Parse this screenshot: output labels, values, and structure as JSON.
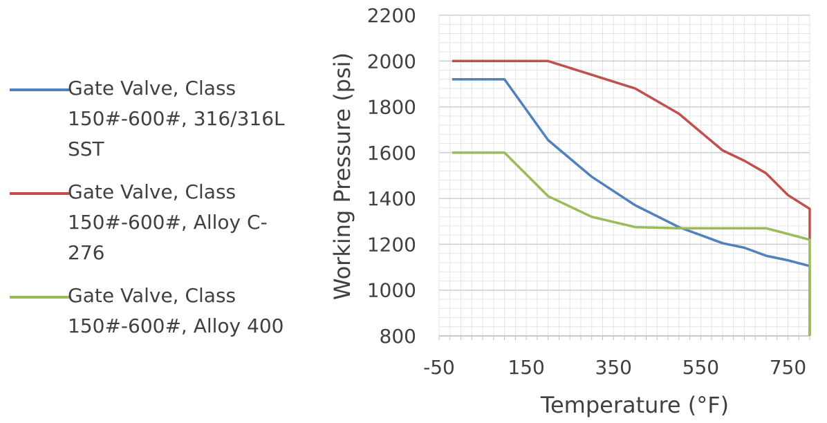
{
  "chart_data": {
    "type": "line",
    "title": "",
    "xlabel": "Temperature (°F)",
    "ylabel": "Working Pressure  (psi)",
    "xlim": [
      -50,
      800
    ],
    "ylim": [
      800,
      2200
    ],
    "xticks": [
      -50,
      150,
      350,
      550,
      750
    ],
    "yticks": [
      800,
      1000,
      1200,
      1400,
      1600,
      1800,
      2000,
      2200
    ],
    "x_tick_labels": [
      "-50",
      "150",
      "350",
      "550",
      "750"
    ],
    "y_tick_labels": [
      "800",
      "1000",
      "1200",
      "1400",
      "1600",
      "1800",
      "2000",
      "2200"
    ],
    "grid": true,
    "legend_position": "left",
    "series": [
      {
        "name": "Gate Valve, Class 150#-600#, 316/316L SST",
        "color": "#4f81bd",
        "points": [
          [
            -20,
            1920
          ],
          [
            100,
            1920
          ],
          [
            200,
            1655
          ],
          [
            300,
            1495
          ],
          [
            400,
            1370
          ],
          [
            500,
            1275
          ],
          [
            600,
            1205
          ],
          [
            650,
            1185
          ],
          [
            700,
            1150
          ],
          [
            750,
            1130
          ],
          [
            800,
            1105
          ],
          [
            800,
            800
          ]
        ]
      },
      {
        "name": "Gate Valve, Class 150#-600#, Alloy C-276",
        "color": "#c0504d",
        "points": [
          [
            -20,
            2000
          ],
          [
            100,
            2000
          ],
          [
            200,
            2000
          ],
          [
            300,
            1940
          ],
          [
            400,
            1880
          ],
          [
            500,
            1770
          ],
          [
            600,
            1610
          ],
          [
            650,
            1565
          ],
          [
            700,
            1510
          ],
          [
            750,
            1415
          ],
          [
            800,
            1355
          ],
          [
            800,
            1220
          ]
        ]
      },
      {
        "name": "Gate Valve, Class 150#-600#, Alloy 400",
        "color": "#9bbb59",
        "points": [
          [
            -20,
            1600
          ],
          [
            100,
            1600
          ],
          [
            200,
            1410
          ],
          [
            300,
            1320
          ],
          [
            400,
            1275
          ],
          [
            500,
            1270
          ],
          [
            600,
            1270
          ],
          [
            650,
            1270
          ],
          [
            700,
            1270
          ],
          [
            750,
            1245
          ],
          [
            800,
            1220
          ],
          [
            800,
            800
          ]
        ]
      }
    ]
  }
}
